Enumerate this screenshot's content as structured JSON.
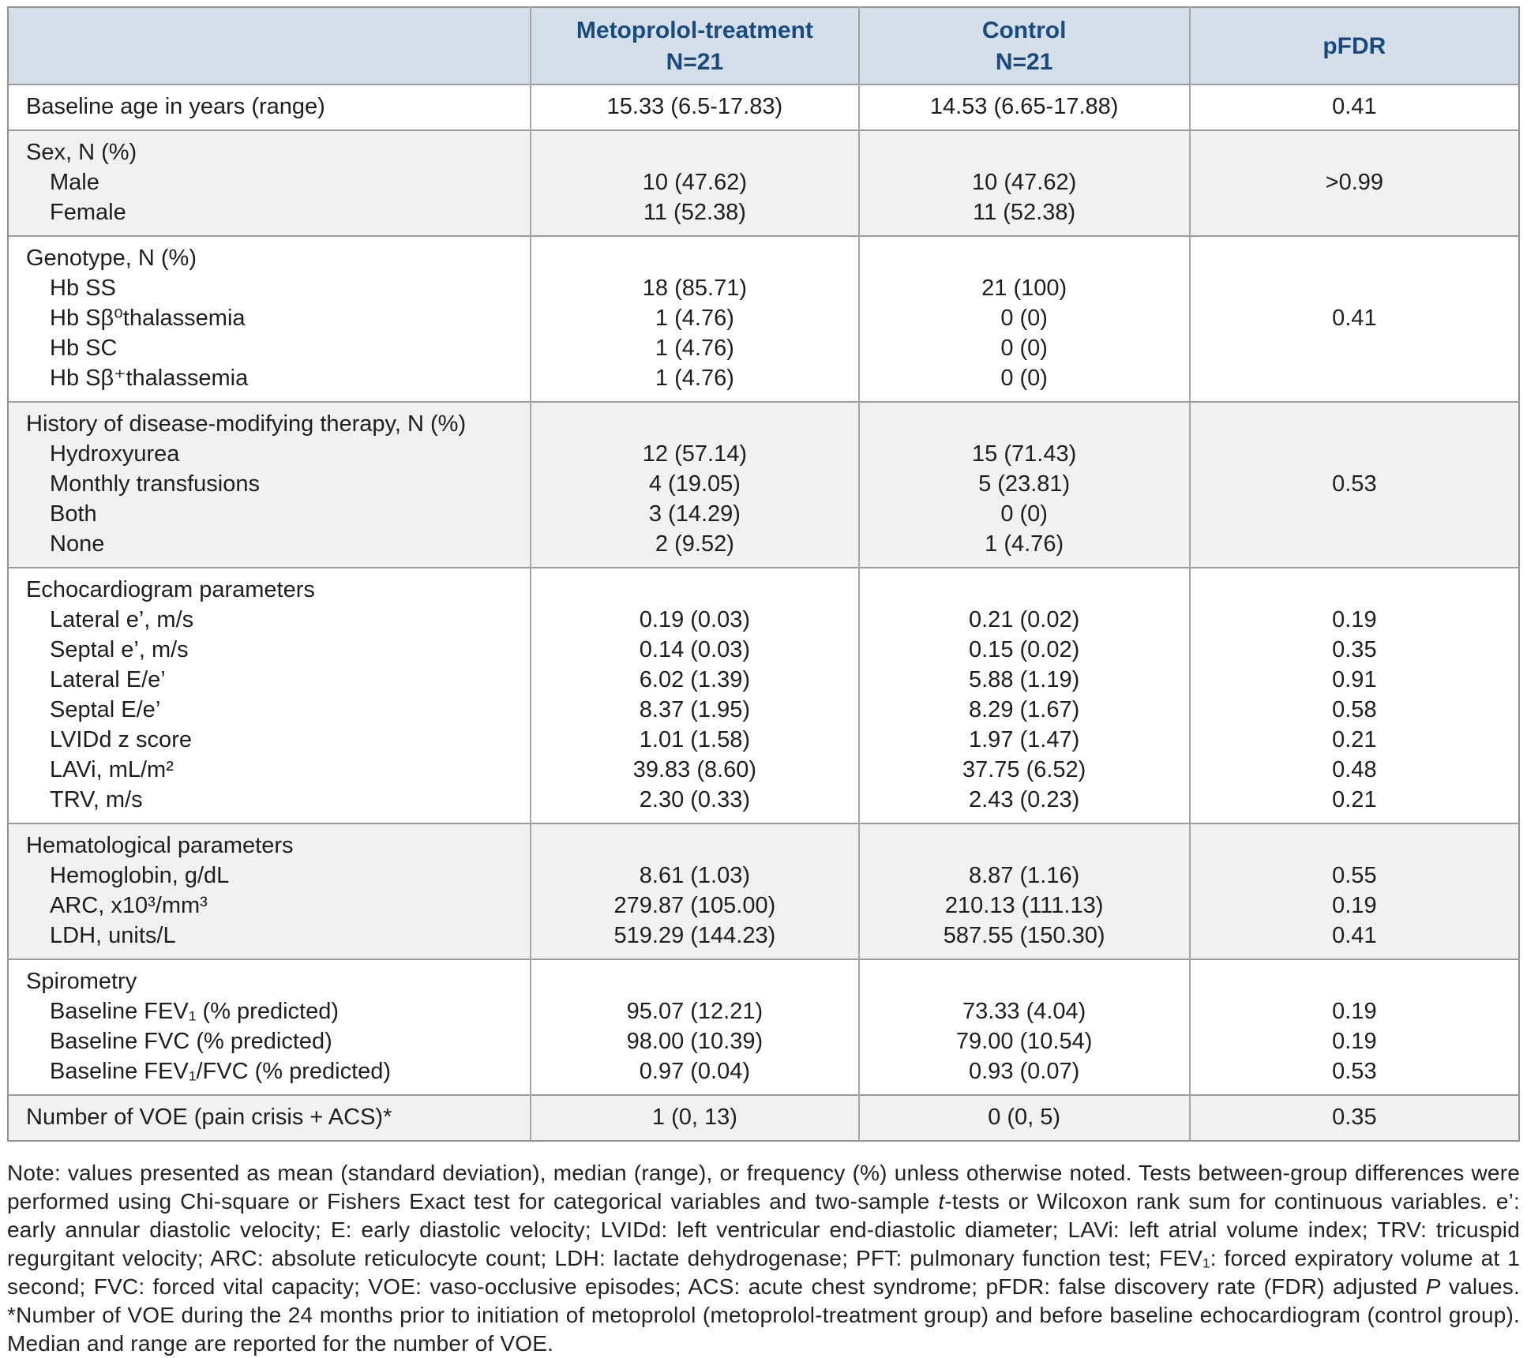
{
  "colors": {
    "header_bg": "#d4dfea",
    "header_text": "#1a4b80",
    "alt_section_bg": "#f1f1f1",
    "border": "#9b9b9b"
  },
  "table": {
    "header": {
      "col1": "",
      "col2_line1": "Metoprolol-treatment",
      "col2_line2": "N=21",
      "col3_line1": "Control",
      "col3_line2": "N=21",
      "col4": "pFDR"
    },
    "sections": [
      {
        "shade": "white",
        "rows": [
          {
            "label": "Baseline age in years (range)",
            "indent": false,
            "v1": "15.33 (6.5-17.83)",
            "v2": "14.53 (6.65-17.88)",
            "pfdr": "0.41"
          }
        ]
      },
      {
        "shade": "gray",
        "rows": [
          {
            "label": "Sex, N (%)",
            "indent": false,
            "v1": "",
            "v2": "",
            "pfdr": ""
          },
          {
            "label": "Male",
            "indent": true,
            "v1": "10 (47.62)",
            "v2": "10 (47.62)",
            "pfdr": ">0.99"
          },
          {
            "label": "Female",
            "indent": true,
            "v1": "11 (52.38)",
            "v2": "11 (52.38)",
            "pfdr": ""
          }
        ]
      },
      {
        "shade": "white",
        "rows": [
          {
            "label": "Genotype, N (%)",
            "indent": false,
            "v1": "",
            "v2": "",
            "pfdr": ""
          },
          {
            "label": "Hb SS",
            "indent": true,
            "v1": "18 (85.71)",
            "v2": "21 (100)",
            "pfdr": ""
          },
          {
            "label": "Hb Sβ⁰thalassemia",
            "indent": true,
            "v1": "1 (4.76)",
            "v2": "0 (0)",
            "pfdr": "0.41"
          },
          {
            "label": "Hb SC",
            "indent": true,
            "v1": "1 (4.76)",
            "v2": "0 (0)",
            "pfdr": ""
          },
          {
            "label": "Hb Sβ⁺thalassemia",
            "indent": true,
            "v1": "1 (4.76)",
            "v2": "0 (0)",
            "pfdr": ""
          }
        ]
      },
      {
        "shade": "gray",
        "rows": [
          {
            "label": "History of disease-modifying therapy, N (%)",
            "indent": false,
            "v1": "",
            "v2": "",
            "pfdr": ""
          },
          {
            "label": "Hydroxyurea",
            "indent": true,
            "v1": "12 (57.14)",
            "v2": "15 (71.43)",
            "pfdr": ""
          },
          {
            "label": "Monthly transfusions",
            "indent": true,
            "v1": "4 (19.05)",
            "v2": "5 (23.81)",
            "pfdr": "0.53"
          },
          {
            "label": "Both",
            "indent": true,
            "v1": "3 (14.29)",
            "v2": "0 (0)",
            "pfdr": ""
          },
          {
            "label": "None",
            "indent": true,
            "v1": "2 (9.52)",
            "v2": "1 (4.76)",
            "pfdr": ""
          }
        ]
      },
      {
        "shade": "white",
        "rows": [
          {
            "label": "Echocardiogram parameters",
            "indent": false,
            "v1": "",
            "v2": "",
            "pfdr": ""
          },
          {
            "label": "Lateral e’, m/s",
            "indent": true,
            "v1": "0.19 (0.03)",
            "v2": "0.21 (0.02)",
            "pfdr": "0.19"
          },
          {
            "label": "Septal e’, m/s",
            "indent": true,
            "v1": "0.14 (0.03)",
            "v2": "0.15 (0.02)",
            "pfdr": "0.35"
          },
          {
            "label": "Lateral E/e’",
            "indent": true,
            "v1": "6.02 (1.39)",
            "v2": "5.88 (1.19)",
            "pfdr": "0.91"
          },
          {
            "label": "Septal E/e’",
            "indent": true,
            "v1": "8.37 (1.95)",
            "v2": "8.29 (1.67)",
            "pfdr": "0.58"
          },
          {
            "label": "LVIDd z score",
            "indent": true,
            "v1": "1.01 (1.58)",
            "v2": "1.97 (1.47)",
            "pfdr": "0.21"
          },
          {
            "label": "LAVi, mL/m²",
            "indent": true,
            "v1": "39.83 (8.60)",
            "v2": "37.75 (6.52)",
            "pfdr": "0.48"
          },
          {
            "label": "TRV, m/s",
            "indent": true,
            "v1": "2.30 (0.33)",
            "v2": "2.43 (0.23)",
            "pfdr": "0.21"
          }
        ]
      },
      {
        "shade": "gray",
        "rows": [
          {
            "label": "Hematological parameters",
            "indent": false,
            "v1": "",
            "v2": "",
            "pfdr": ""
          },
          {
            "label": "Hemoglobin, g/dL",
            "indent": true,
            "v1": "8.61 (1.03)",
            "v2": "8.87 (1.16)",
            "pfdr": "0.55"
          },
          {
            "label": "ARC, x10³/mm³",
            "indent": true,
            "v1": "279.87 (105.00)",
            "v2": "210.13 (111.13)",
            "pfdr": "0.19"
          },
          {
            "label": "LDH, units/L",
            "indent": true,
            "v1": "519.29 (144.23)",
            "v2": "587.55 (150.30)",
            "pfdr": "0.41"
          }
        ]
      },
      {
        "shade": "white",
        "rows": [
          {
            "label": "Spirometry",
            "indent": false,
            "v1": "",
            "v2": "",
            "pfdr": ""
          },
          {
            "label": "Baseline FEV₁ (% predicted)",
            "indent": true,
            "v1": "95.07 (12.21)",
            "v2": "73.33 (4.04)",
            "pfdr": "0.19"
          },
          {
            "label": "Baseline FVC (% predicted)",
            "indent": true,
            "v1": "98.00 (10.39)",
            "v2": "79.00 (10.54)",
            "pfdr": "0.19"
          },
          {
            "label": "Baseline FEV₁/FVC (% predicted)",
            "indent": true,
            "v1": "0.97 (0.04)",
            "v2": "0.93 (0.07)",
            "pfdr": "0.53"
          }
        ]
      },
      {
        "shade": "gray",
        "rows": [
          {
            "label": "Number of VOE (pain crisis + ACS)*",
            "indent": false,
            "v1": "1 (0, 13)",
            "v2": "0 (0, 5)",
            "pfdr": "0.35"
          }
        ]
      }
    ]
  },
  "note": {
    "segments": [
      {
        "text": "Note: values presented as mean (standard deviation), median (range), or frequency (%) unless otherwise noted. Tests between-group differences were performed using Chi-square or Fishers Exact test for categorical variables and two-sample ",
        "italic": false
      },
      {
        "text": "t",
        "italic": true
      },
      {
        "text": "-tests or Wilcoxon rank sum for continuous variables. e’: early annular diastolic velocity; E: early diastolic velocity; LVIDd: left ventricular end-diastolic diameter; LAVi: left atrial volume index; TRV: tricuspid regurgitant velocity; ARC: absolute reticulocyte count; LDH: lactate dehydrogenase; PFT: pulmonary function test; FEV₁: forced expiratory volume at 1 second; FVC: forced vital capacity; VOE: vaso-occlusive episodes; ACS: acute chest syndrome; pFDR: false discovery rate (FDR) adjusted ",
        "italic": false
      },
      {
        "text": "P",
        "italic": true
      },
      {
        "text": " values. *Number of VOE during the 24 months prior to initiation of metoprolol (metoprolol-treatment group) and before baseline echocardiogram (control group). Median and range are reported for the number of VOE.",
        "italic": false
      }
    ]
  }
}
